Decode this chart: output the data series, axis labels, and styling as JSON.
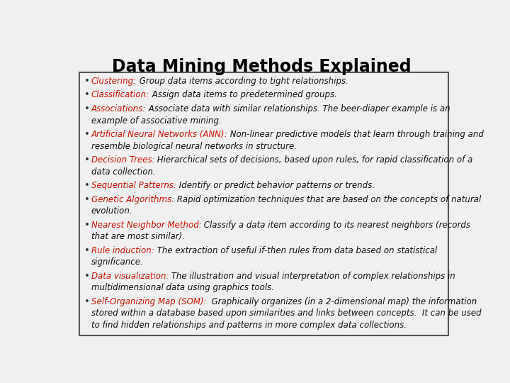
{
  "title": "Data Mining Methods Explained",
  "title_fontsize": 17,
  "title_color": "#000000",
  "background_color": "#f0f0f0",
  "box_facecolor": "#f0f0f0",
  "box_edge_color": "#555555",
  "bullet_color": "#333333",
  "term_color": "#cc1100",
  "text_color": "#111111",
  "items": [
    {
      "term": "Clustering:",
      "desc": " Group data items according to tight relationships."
    },
    {
      "term": "Classification:",
      "desc": " Assign data items to predetermined groups."
    },
    {
      "term": "Associations:",
      "desc": " Associate data with similar relationships. The beer-diaper example is an\nexample of associative mining."
    },
    {
      "term": "Artificial Neural Networks (ANN):",
      "desc": " Non-linear predictive models that learn through training and\nresemble biological neural networks in structure."
    },
    {
      "term": "Decision Trees:",
      "desc": " Hierarchical sets of decisions, based upon rules, for rapid classification of a\ndata collection."
    },
    {
      "term": "Sequential Patterns:",
      "desc": " Identify or predict behavior patterns or trends."
    },
    {
      "term": "Genetic Algorithms:",
      "desc": " Rapid optimization techniques that are based on the concepts of natural\nevolution."
    },
    {
      "term": "Nearest Neighbor Method:",
      "desc": " Classify a data item according to its nearest neighbors (records\nthat are most similar)."
    },
    {
      "term": "Rule induction:",
      "desc": " The extraction of useful if-then rules from data based on statistical\nsignificance."
    },
    {
      "term": "Data visualization:",
      "desc": " The illustration and visual interpretation of complex relationships in\nmultidimensional data using graphics tools."
    },
    {
      "term": "Self-Organizing Map (SOM):",
      "desc": "  Graphically organizes (in a 2-dimensional map) the information\nstored within a database based upon similarities and links between concepts.  It can be used\nto find hidden relationships and patterns in more complex data collections."
    }
  ],
  "font_size": 8.5
}
